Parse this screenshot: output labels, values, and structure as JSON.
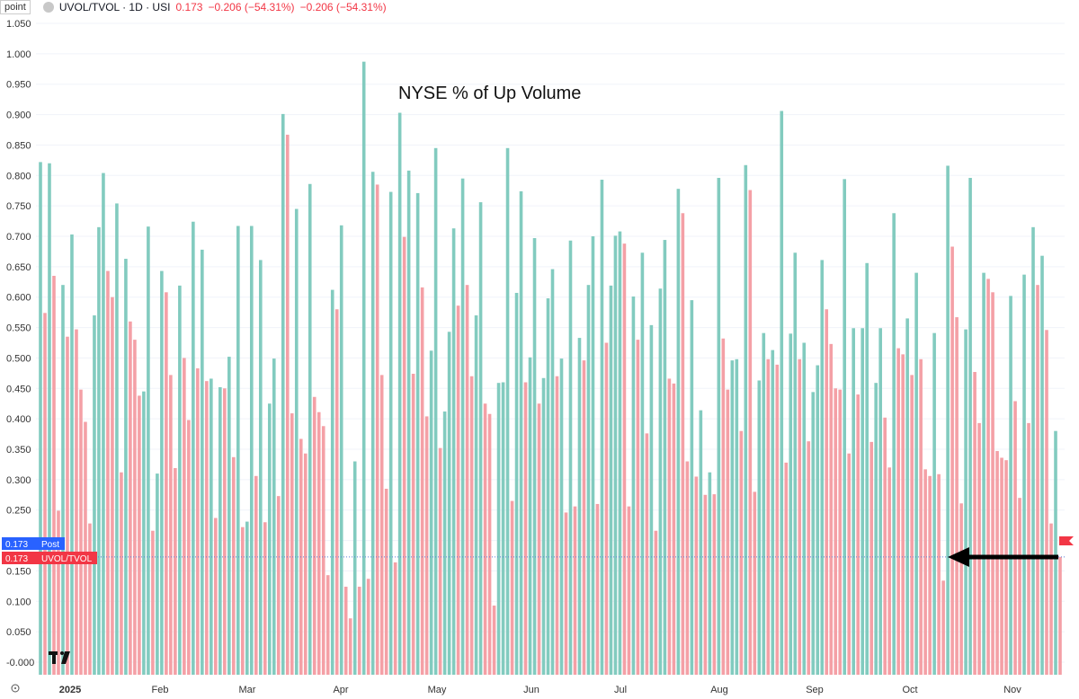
{
  "header": {
    "unit_label": "point",
    "symbol": "UVOL/TVOL · 1D · USI",
    "last_value": "0.173",
    "change": "−0.206 (−54.31%)",
    "change_repeat": "−0.206 (−54.31%)"
  },
  "annotation": {
    "overlay_text": "NYSE % of Up Volume"
  },
  "price_tags": {
    "post_value": "0.173",
    "post_label": "Post",
    "main_value": "0.173",
    "main_label": "UVOL/TVOL"
  },
  "colors": {
    "up": "#82CBBF",
    "down": "#F4A0A6",
    "tag_post": "#2962FF",
    "tag_main": "#F23645",
    "flag": "#F23645",
    "arrow": "#000000"
  },
  "chart_data": {
    "type": "bar",
    "title": "NYSE % of Up Volume",
    "ylim": [
      -0.025,
      1.055
    ],
    "yticks": [
      "1.050",
      "1.000",
      "0.950",
      "0.900",
      "0.850",
      "0.800",
      "0.750",
      "0.700",
      "0.650",
      "0.600",
      "0.550",
      "0.500",
      "0.450",
      "0.400",
      "0.350",
      "0.300",
      "0.250",
      "0.200",
      "0.150",
      "0.100",
      "0.050",
      "-0.000"
    ],
    "x_month_labels": [
      "2025",
      "Feb",
      "Mar",
      "Apr",
      "May",
      "Jun",
      "Jul",
      "Aug",
      "Sep",
      "Oct",
      "Nov"
    ],
    "values": [
      0.822,
      0.574,
      0.82,
      0.635,
      0.249,
      0.62,
      0.535,
      0.703,
      0.547,
      0.448,
      0.395,
      0.228,
      0.57,
      0.715,
      0.804,
      0.643,
      0.6,
      0.754,
      0.312,
      0.663,
      0.56,
      0.53,
      0.438,
      0.445,
      0.716,
      0.216,
      0.31,
      0.643,
      0.608,
      0.472,
      0.319,
      0.619,
      0.5,
      0.398,
      0.724,
      0.483,
      0.678,
      0.462,
      0.466,
      0.237,
      0.452,
      0.45,
      0.502,
      0.337,
      0.717,
      0.222,
      0.231,
      0.717,
      0.306,
      0.661,
      0.23,
      0.425,
      0.499,
      0.273,
      0.901,
      0.867,
      0.409,
      0.745,
      0.367,
      0.343,
      0.786,
      0.436,
      0.411,
      0.388,
      0.143,
      0.612,
      0.58,
      0.718,
      0.124,
      0.072,
      0.33,
      0.124,
      0.987,
      0.137,
      0.806,
      0.785,
      0.472,
      0.285,
      0.773,
      0.164,
      0.903,
      0.699,
      0.808,
      0.474,
      0.771,
      0.616,
      0.404,
      0.512,
      0.845,
      0.352,
      0.412,
      0.543,
      0.713,
      0.586,
      0.795,
      0.62,
      0.47,
      0.57,
      0.756,
      0.425,
      0.408,
      0.093,
      0.459,
      0.46,
      0.845,
      0.265,
      0.607,
      0.774,
      0.46,
      0.501,
      0.697,
      0.425,
      0.467,
      0.598,
      0.646,
      0.47,
      0.499,
      0.246,
      0.693,
      0.256,
      0.533,
      0.496,
      0.62,
      0.7,
      0.26,
      0.793,
      0.525,
      0.619,
      0.701,
      0.708,
      0.688,
      0.256,
      0.601,
      0.53,
      0.673,
      0.376,
      0.554,
      0.216,
      0.614,
      0.694,
      0.466,
      0.458,
      0.778,
      0.738,
      0.33,
      0.595,
      0.305,
      0.414,
      0.275,
      0.312,
      0.276,
      0.796,
      0.532,
      0.448,
      0.496,
      0.498,
      0.38,
      0.817,
      0.776,
      0.28,
      0.463,
      0.541,
      0.498,
      0.513,
      0.489,
      0.906,
      0.328,
      0.54,
      0.673,
      0.498,
      0.525,
      0.363,
      0.444,
      0.488,
      0.661,
      0.58,
      0.523,
      0.45,
      0.448,
      0.794,
      0.343,
      0.549,
      0.44,
      0.549,
      0.656,
      0.362,
      0.459,
      0.549,
      0.402,
      0.32,
      0.738,
      0.516,
      0.506,
      0.565,
      0.472,
      0.64,
      0.498,
      0.317,
      0.306,
      0.541,
      0.309,
      0.134,
      0.816,
      0.683,
      0.567,
      0.261,
      0.547,
      0.796,
      0.477,
      0.393,
      0.64,
      0.63,
      0.608,
      0.347,
      0.336,
      0.332,
      0.602,
      0.429,
      0.27,
      0.637,
      0.393,
      0.715,
      0.62,
      0.668,
      0.546,
      0.228,
      0.38,
      0.173
    ]
  }
}
